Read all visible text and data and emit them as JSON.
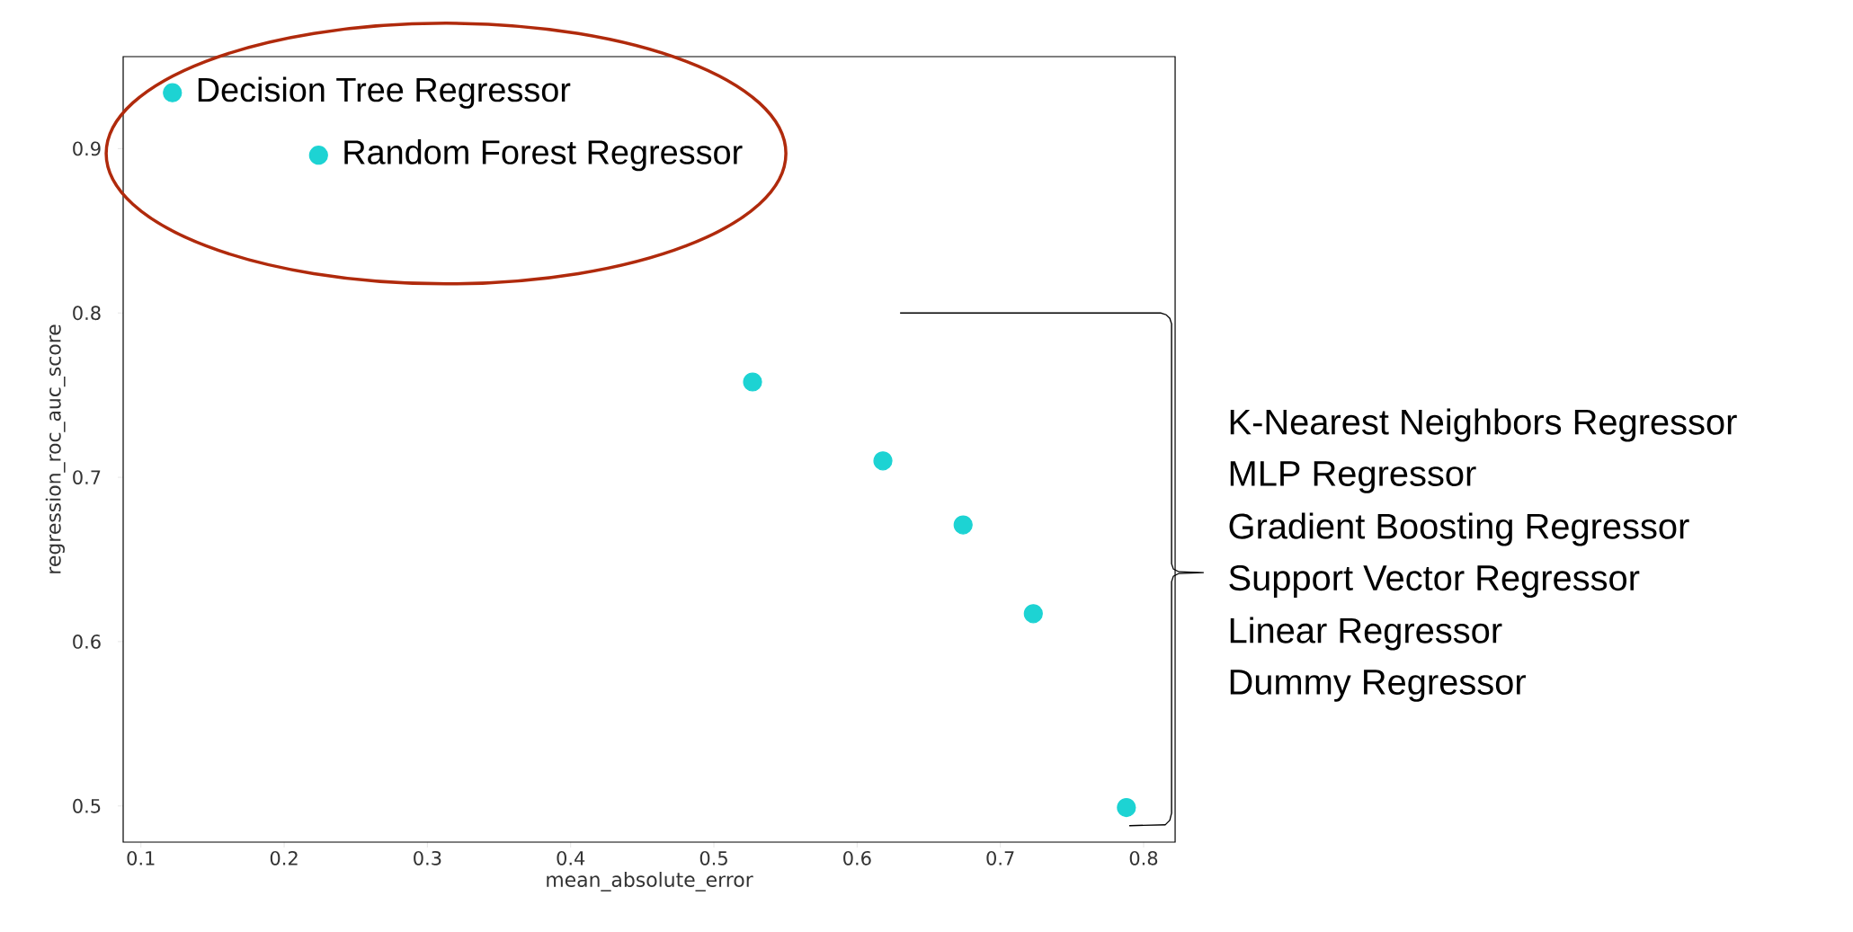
{
  "chart_data": {
    "type": "scatter",
    "xlabel": "mean_absolute_error",
    "ylabel": "regression_roc_auc_score",
    "x": [
      0.122,
      0.224,
      0.527,
      0.618,
      0.674,
      0.723,
      0.788
    ],
    "values": [
      0.934,
      0.896,
      0.758,
      0.71,
      0.671,
      0.617,
      0.499
    ],
    "color": "#1dd3d3",
    "xlim": [
      0.0876,
      0.822
    ],
    "ylim": [
      0.478,
      0.956
    ],
    "xticks": [
      0.1,
      0.2,
      0.3,
      0.4,
      0.5,
      0.6,
      0.7,
      0.8
    ],
    "yticks": [
      0.5,
      0.6,
      0.7,
      0.8,
      0.9
    ],
    "grid": false,
    "annotations": [
      {
        "text": "Decision Tree Regressor",
        "x": 0.122,
        "y": 0.934
      },
      {
        "text": "Random Forest Regressor",
        "x": 0.224,
        "y": 0.896
      },
      "K-Nearest Neighbors Regressor",
      "MLP Regressor",
      "Gradient Boosting Regressor",
      "Support Vector Regressor",
      "Linear Regressor",
      "Dummy Regressor"
    ]
  }
}
